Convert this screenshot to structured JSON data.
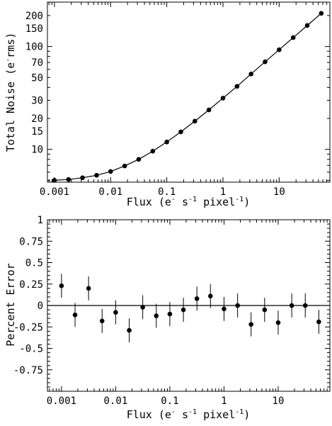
{
  "chart_data": [
    {
      "type": "line",
      "scale": "log-log",
      "xlabel": {
        "text": "Flux (e",
        "sup1": "-",
        "mid": " s",
        "sup2": "-1",
        "end": " pixel",
        "sup3": "-1",
        "close": ")"
      },
      "ylabel": {
        "text": "Total Noise (e",
        "sup": "-",
        "end": "rms)"
      },
      "xlim": [
        0.00075,
        80
      ],
      "ylim": [
        4.8,
        270
      ],
      "x_ticks": [
        {
          "value": 0.001,
          "label": "0.001"
        },
        {
          "value": 0.01,
          "label": "0.01"
        },
        {
          "value": 0.1,
          "label": "0.1"
        },
        {
          "value": 1,
          "label": "1"
        },
        {
          "value": 10,
          "label": "10"
        }
      ],
      "y_ticks": [
        {
          "value": 10,
          "label": "10"
        },
        {
          "value": 15,
          "label": "15"
        },
        {
          "value": 20,
          "label": "20"
        },
        {
          "value": 30,
          "label": "30"
        },
        {
          "value": 50,
          "label": "50"
        },
        {
          "value": 70,
          "label": "70"
        },
        {
          "value": 100,
          "label": "100"
        },
        {
          "value": 150,
          "label": "150"
        },
        {
          "value": 200,
          "label": "200"
        }
      ],
      "series": [
        {
          "x": [
            0.001,
            0.00178,
            0.00316,
            0.00562,
            0.01,
            0.0178,
            0.0316,
            0.0562,
            0.1,
            0.178,
            0.316,
            0.562,
            1,
            1.78,
            3.16,
            5.62,
            10,
            17.8,
            31.6,
            56.2
          ],
          "y": [
            5.0,
            5.1,
            5.3,
            5.6,
            6.1,
            6.9,
            8.0,
            9.6,
            11.8,
            14.8,
            18.8,
            24.2,
            31.5,
            41,
            54,
            71,
            93,
            122,
            160,
            210
          ]
        }
      ]
    },
    {
      "type": "scatter",
      "xscale": "log",
      "xlabel": {
        "text": "Flux (e",
        "sup1": "-",
        "mid": " s",
        "sup2": "-1",
        "end": " pixel",
        "sup3": "-1",
        "close": ")"
      },
      "ylabel": "Percent Error",
      "xlim": [
        0.00055,
        90
      ],
      "ylim": [
        -1,
        1
      ],
      "x_ticks": [
        {
          "value": 0.001,
          "label": "0.001"
        },
        {
          "value": 0.01,
          "label": "0.01"
        },
        {
          "value": 0.1,
          "label": "0.1"
        },
        {
          "value": 1,
          "label": "1"
        },
        {
          "value": 10,
          "label": "10"
        }
      ],
      "y_ticks": [
        {
          "value": 1,
          "label": "1"
        },
        {
          "value": 0.75,
          "label": "0.75"
        },
        {
          "value": 0.5,
          "label": "0.5"
        },
        {
          "value": 0.25,
          "label": "0.25"
        },
        {
          "value": 0,
          "label": "0"
        },
        {
          "value": -0.25,
          "label": "-0.25"
        },
        {
          "value": -0.5,
          "label": "-0.5"
        },
        {
          "value": -0.75,
          "label": "-0.75"
        }
      ],
      "zero_line": 0,
      "series": [
        {
          "x": [
            0.001,
            0.00178,
            0.00316,
            0.00562,
            0.01,
            0.0178,
            0.0316,
            0.0562,
            0.1,
            0.178,
            0.316,
            0.562,
            1,
            1.78,
            3.16,
            5.62,
            10,
            17.8,
            31.6,
            56.2
          ],
          "y": [
            0.23,
            -0.11,
            0.2,
            -0.18,
            -0.08,
            -0.29,
            -0.02,
            -0.12,
            -0.1,
            -0.05,
            0.08,
            0.11,
            -0.04,
            0.0,
            -0.22,
            -0.05,
            -0.2,
            0.0,
            0.0,
            -0.19
          ],
          "error": [
            0.14,
            0.14,
            0.14,
            0.14,
            0.14,
            0.14,
            0.14,
            0.14,
            0.14,
            0.14,
            0.14,
            0.14,
            0.14,
            0.14,
            0.14,
            0.14,
            0.14,
            0.14,
            0.14,
            0.14
          ]
        }
      ]
    }
  ]
}
